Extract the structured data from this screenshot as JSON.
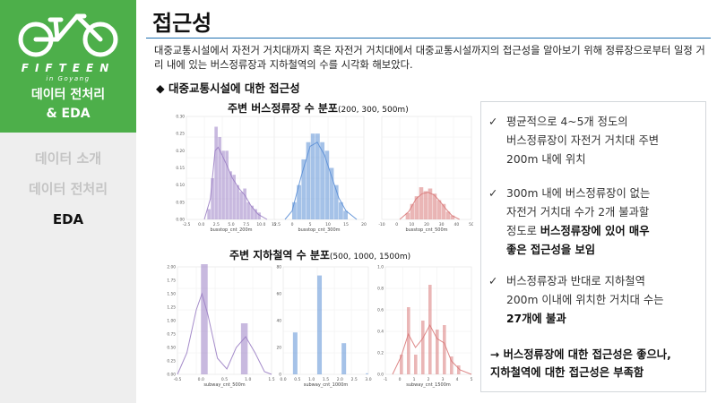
{
  "sidebar": {
    "brand_name": "FIFTEEN",
    "brand_sub": "in Goyang",
    "section_title_line1": "데이터 전처리",
    "section_title_line2": "& EDA",
    "nav": [
      "데이터 소개",
      "데이터 전처리",
      "EDA"
    ],
    "active_nav": "EDA"
  },
  "main": {
    "title": "접근성",
    "intro": "대중교통시설에서 자전거 거치대까지 혹은 자전거 거치대에서 대중교통시설까지의 접근성을 알아보기 위해 정류장으로부터 일정 거리 내에 있는 버스정류장과 지하철역의 수를 시각화 해보았다.",
    "sub_heading": "◆ 대중교통시설에 대한 접근성",
    "bus_chart_title": "주변 버스정류장 수 분포",
    "bus_chart_title_small": "(200, 300, 500m)",
    "subway_chart_title": "주변 지하철역 수 분포",
    "subway_chart_title_small": "(500, 1000, 1500m)"
  },
  "panel": {
    "check": "✓",
    "note1_line1": "평균적으로 4~5개 정도의",
    "note1_line2": "버스정류장이 자전거 거치대 주변",
    "note1_line3": "200m 내에 위치",
    "note2_line1": "300m 내에 버스정류장이 없는",
    "note2_line2": "자전거 거치대 수가 2개 불과할",
    "note2_line3_plain": "정도로 ",
    "note2_line3_bold": "버스정류장에 있어 매우",
    "note2_line4_bold": "좋은 접근성을 보임",
    "note3_line1": "버스정류장과 반대로 지하철역",
    "note3_line2": "200m 이내에 위치한 거치대 수는",
    "note3_line3_bold": "27개에 불과",
    "conclusion_line1": "→ 버스정류장에 대한 접근성은 좋으나,",
    "conclusion_line2": "지하철역에 대한 접근성은 부족함"
  },
  "colors": {
    "brand_green": "#4daf4a",
    "purple": "#9b7fc4",
    "blue": "#5b8fd6",
    "red": "#d97a7a"
  },
  "chart_data": [
    {
      "type": "bar",
      "title": "주변 버스정류장 수 분포 (200m)",
      "xlabel": "busstop_cnt_200m",
      "xlim": [
        -2.5,
        12.5
      ],
      "ylim": [
        0,
        0.3
      ],
      "xticks": [
        "-2.5",
        "0.0",
        "2.5",
        "5.0",
        "7.5",
        "10.0",
        "12.5"
      ],
      "yticks": [
        "0.00",
        "0.05",
        "0.10",
        "0.15",
        "0.20",
        "0.25",
        "0.30"
      ],
      "bins": [
        [
          1.0,
          1.6,
          0.03
        ],
        [
          1.6,
          2.2,
          0.12
        ],
        [
          2.2,
          2.8,
          0.27
        ],
        [
          2.8,
          3.4,
          0.24
        ],
        [
          3.4,
          4.0,
          0.2
        ],
        [
          4.0,
          4.6,
          0.2
        ],
        [
          4.6,
          5.2,
          0.14
        ],
        [
          5.2,
          5.8,
          0.13
        ],
        [
          5.8,
          6.4,
          0.1
        ],
        [
          6.4,
          7.0,
          0.08
        ],
        [
          7.0,
          7.6,
          0.09
        ],
        [
          7.6,
          8.2,
          0.05
        ],
        [
          8.2,
          8.8,
          0.04
        ],
        [
          8.8,
          9.4,
          0.03
        ],
        [
          9.4,
          10.0,
          0.02
        ]
      ],
      "kde": [
        [
          0.5,
          0.0
        ],
        [
          1.5,
          0.06
        ],
        [
          2.3,
          0.2
        ],
        [
          2.8,
          0.21
        ],
        [
          3.4,
          0.19
        ],
        [
          4.2,
          0.16
        ],
        [
          5.2,
          0.12
        ],
        [
          6.3,
          0.09
        ],
        [
          7.3,
          0.07
        ],
        [
          8.3,
          0.04
        ],
        [
          9.5,
          0.015
        ],
        [
          11.0,
          0.0
        ]
      ]
    },
    {
      "type": "bar",
      "title": "주변 버스정류장 수 분포 (300m)",
      "xlabel": "busstop_cnt_300m",
      "xlim": [
        -5,
        20
      ],
      "ylim": [
        0,
        0.12
      ],
      "xticks": [
        "-5",
        "0",
        "5",
        "10",
        "15",
        "20"
      ],
      "yticks": [],
      "bins": [
        [
          0.0,
          1.3,
          0.02
        ],
        [
          1.3,
          2.6,
          0.04
        ],
        [
          2.6,
          3.9,
          0.07
        ],
        [
          3.9,
          5.2,
          0.09
        ],
        [
          5.2,
          6.5,
          0.1
        ],
        [
          6.5,
          7.8,
          0.1
        ],
        [
          7.8,
          9.1,
          0.09
        ],
        [
          9.1,
          10.4,
          0.08
        ],
        [
          10.4,
          11.7,
          0.06
        ],
        [
          11.7,
          13.0,
          0.04
        ],
        [
          13.0,
          14.3,
          0.02
        ],
        [
          14.3,
          15.6,
          0.01
        ]
      ],
      "kde": [
        [
          -2,
          0.0
        ],
        [
          0,
          0.01
        ],
        [
          2.5,
          0.05
        ],
        [
          5,
          0.085
        ],
        [
          7,
          0.09
        ],
        [
          9,
          0.075
        ],
        [
          11,
          0.05
        ],
        [
          13,
          0.025
        ],
        [
          15,
          0.01
        ],
        [
          18,
          0.0
        ]
      ]
    },
    {
      "type": "bar",
      "title": "주변 버스정류장 수 분포 (500m)",
      "xlabel": "busstop_cnt_500m",
      "xlim": [
        -10,
        50
      ],
      "ylim": [
        0,
        0.08
      ],
      "xticks": [
        "-10",
        "0",
        "10",
        "20",
        "30",
        "40",
        "50"
      ],
      "yticks": [],
      "bins": [
        [
          6,
          9,
          0.005
        ],
        [
          9,
          12,
          0.012
        ],
        [
          12,
          15,
          0.018
        ],
        [
          15,
          18,
          0.025
        ],
        [
          18,
          21,
          0.022
        ],
        [
          21,
          24,
          0.024
        ],
        [
          24,
          27,
          0.02
        ],
        [
          27,
          30,
          0.015
        ],
        [
          30,
          33,
          0.012
        ],
        [
          33,
          36,
          0.006
        ],
        [
          36,
          39,
          0.003
        ]
      ],
      "kde": [
        [
          2,
          0.0
        ],
        [
          8,
          0.006
        ],
        [
          13,
          0.016
        ],
        [
          17,
          0.02
        ],
        [
          21,
          0.021
        ],
        [
          25,
          0.019
        ],
        [
          29,
          0.014
        ],
        [
          33,
          0.008
        ],
        [
          37,
          0.003
        ],
        [
          42,
          0.0
        ]
      ]
    },
    {
      "type": "bar",
      "title": "주변 지하철역 수 분포 (500m)",
      "xlabel": "subway_cnt_500m",
      "xlim": [
        -0.5,
        1.5
      ],
      "ylim": [
        0,
        2.0
      ],
      "xticks": [
        "-0.5",
        "0.0",
        "0.5",
        "1.0",
        "1.5"
      ],
      "yticks": [
        "0.00",
        "0.25",
        "0.50",
        "0.75",
        "1.00",
        "1.25",
        "1.50",
        "1.75",
        "2.00"
      ],
      "bins": [
        [
          0.0,
          0.15,
          2.05
        ],
        [
          0.85,
          1.0,
          0.95
        ]
      ],
      "kde": [
        [
          -0.5,
          0.0
        ],
        [
          -0.3,
          0.4
        ],
        [
          -0.1,
          1.2
        ],
        [
          0.02,
          1.5
        ],
        [
          0.15,
          1.1
        ],
        [
          0.35,
          0.3
        ],
        [
          0.55,
          0.1
        ],
        [
          0.75,
          0.5
        ],
        [
          0.95,
          0.7
        ],
        [
          1.15,
          0.4
        ],
        [
          1.35,
          0.05
        ],
        [
          1.5,
          0.0
        ]
      ]
    },
    {
      "type": "bar",
      "title": "주변 지하철역 수 분포 (1000m)",
      "xlabel": "subway_cnt_1000m",
      "xlim": [
        -0.5,
        3.0
      ],
      "ylim": [
        0,
        100
      ],
      "xticks": [
        "0.0",
        "0.5",
        "1.0",
        "1.5",
        "2.0",
        "2.5",
        "3.0"
      ],
      "yticks": [
        "0",
        "20",
        "40",
        "60",
        "80"
      ],
      "bins": [
        [
          -0.1,
          0.1,
          39
        ],
        [
          0.9,
          1.1,
          92
        ],
        [
          1.9,
          2.1,
          29
        ],
        [
          2.9,
          3.0,
          1
        ]
      ],
      "kde": []
    },
    {
      "type": "bar",
      "title": "주변 지하철역 수 분포 (1500m)",
      "xlabel": "subway_cnt_1500m",
      "xlim": [
        -1,
        5
      ],
      "ylim": [
        0,
        1.2
      ],
      "xticks": [
        "-1",
        "0",
        "1",
        "2",
        "3",
        "4",
        "5"
      ],
      "yticks": [
        "0.0",
        "0.2",
        "0.4",
        "0.6",
        "0.8",
        "1.0"
      ],
      "bins": [
        [
          0.0,
          0.25,
          0.22
        ],
        [
          0.5,
          0.75,
          0.75
        ],
        [
          1.0,
          1.25,
          0.22
        ],
        [
          1.5,
          1.75,
          0.6
        ],
        [
          2.0,
          2.25,
          1.0
        ],
        [
          2.5,
          2.75,
          0.5
        ],
        [
          3.0,
          3.25,
          0.55
        ],
        [
          3.5,
          3.75,
          0.2
        ],
        [
          4.0,
          4.25,
          0.1
        ]
      ],
      "kde": [
        [
          -0.5,
          0.0
        ],
        [
          0.1,
          0.2
        ],
        [
          0.6,
          0.45
        ],
        [
          1.1,
          0.3
        ],
        [
          1.6,
          0.4
        ],
        [
          2.1,
          0.55
        ],
        [
          2.6,
          0.4
        ],
        [
          3.1,
          0.35
        ],
        [
          3.6,
          0.15
        ],
        [
          4.2,
          0.05
        ],
        [
          5,
          0.0
        ]
      ]
    }
  ]
}
